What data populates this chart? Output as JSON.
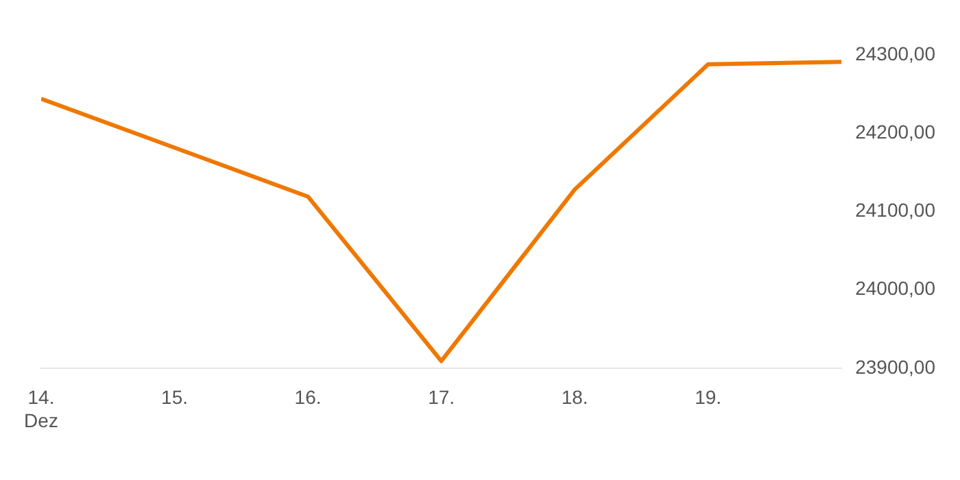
{
  "chart_data": {
    "type": "line",
    "x": [
      "--12-14",
      "--12-16",
      "--12-17",
      "--12-18",
      "--12-19",
      "--12-20"
    ],
    "series": [
      {
        "color": "#ef7800",
        "values": [
          24244,
          24119,
          23909,
          24128,
          24288,
          24291
        ]
      }
    ],
    "xticks": [
      {
        "value": "--12-14",
        "label": "14.\nDez"
      },
      {
        "value": "--12-15",
        "label": "15."
      },
      {
        "value": "--12-16",
        "label": "16."
      },
      {
        "value": "--12-17",
        "label": "17."
      },
      {
        "value": "--12-18",
        "label": "18."
      },
      {
        "value": "--12-19",
        "label": "19."
      }
    ],
    "xlim": [
      "--12-14",
      "--12-20"
    ],
    "ylim": [
      23900,
      24300
    ],
    "yticks": [
      {
        "value": 23900,
        "label": "23900,00"
      },
      {
        "value": 24000,
        "label": "24000,00"
      },
      {
        "value": 24100,
        "label": "24100,00"
      },
      {
        "value": 24200,
        "label": "24200,00"
      },
      {
        "value": 24300,
        "label": "24300,00"
      }
    ],
    "grid": false,
    "legend": false,
    "marker": "none",
    "line_style": "solid"
  }
}
